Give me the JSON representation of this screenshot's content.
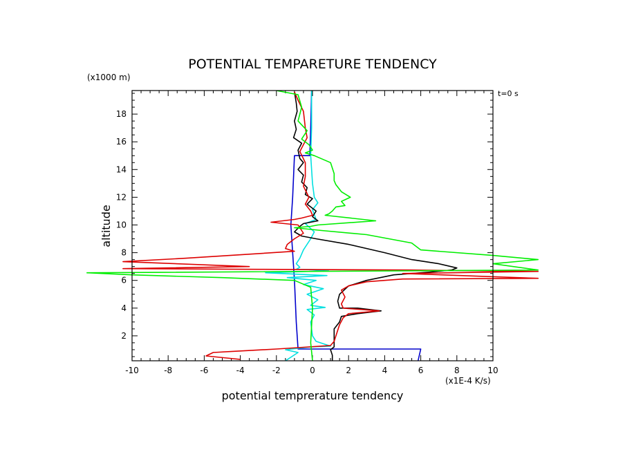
{
  "chart_data": {
    "type": "line",
    "title": "POTENTIAL TEMPARETURE TENDENCY",
    "xlabel": "potential temprerature tendency",
    "ylabel": "altitude",
    "x_unit": "(x1E-4 K/s)",
    "y_unit": "(x1000 m)",
    "time_label": "t=0 s",
    "xlim": [
      -10,
      10
    ],
    "ylim": [
      0.2,
      19.7
    ],
    "x_ticks": [
      -10,
      -8,
      -6,
      -4,
      -2,
      0,
      2,
      4,
      6,
      8,
      10
    ],
    "y_ticks": [
      2,
      4,
      6,
      8,
      10,
      12,
      14,
      16,
      18
    ],
    "series": [
      {
        "name": "blue",
        "color": "#0000cc",
        "points": [
          [
            -0.05,
            19.75
          ],
          [
            -0.1,
            17
          ],
          [
            -0.15,
            15
          ],
          [
            -1.0,
            15
          ],
          [
            -1.1,
            12
          ],
          [
            -1.2,
            10
          ],
          [
            -1.1,
            8
          ],
          [
            -1.0,
            6
          ],
          [
            -0.9,
            3
          ],
          [
            -0.8,
            1.05
          ],
          [
            6.0,
            1.05
          ],
          [
            5.85,
            0.2
          ]
        ]
      },
      {
        "name": "cyan",
        "color": "#00e0e0",
        "points": [
          [
            -0.05,
            19.7
          ],
          [
            -0.05,
            17
          ],
          [
            -0.1,
            15
          ],
          [
            0.0,
            13
          ],
          [
            0.1,
            12
          ],
          [
            0.3,
            11.6
          ],
          [
            0.0,
            11.1
          ],
          [
            0.2,
            10.4
          ],
          [
            -0.4,
            10.1
          ],
          [
            0.1,
            9.5
          ],
          [
            -0.1,
            9.0
          ],
          [
            -0.5,
            8.2
          ],
          [
            -0.7,
            7.6
          ],
          [
            -0.9,
            7.2
          ],
          [
            -0.7,
            6.95
          ],
          [
            -0.9,
            6.8
          ],
          [
            0.9,
            6.75
          ],
          [
            -0.2,
            6.65
          ],
          [
            -2.6,
            6.55
          ],
          [
            -0.9,
            6.45
          ],
          [
            0.8,
            6.35
          ],
          [
            -1.4,
            6.2
          ],
          [
            0.2,
            6.0
          ],
          [
            -0.5,
            5.7
          ],
          [
            0.6,
            5.4
          ],
          [
            -0.3,
            5.0
          ],
          [
            0.3,
            4.6
          ],
          [
            -0.1,
            4.2
          ],
          [
            0.7,
            4.05
          ],
          [
            -0.3,
            3.9
          ],
          [
            0.1,
            3.5
          ],
          [
            -0.1,
            3.0
          ],
          [
            0.0,
            2.0
          ],
          [
            0.2,
            1.6
          ],
          [
            1.0,
            1.25
          ],
          [
            -0.1,
            1.2
          ],
          [
            -1.5,
            1.0
          ],
          [
            -0.8,
            0.8
          ],
          [
            -1.5,
            0.2
          ]
        ]
      },
      {
        "name": "black",
        "color": "#000000",
        "points": [
          [
            -1.0,
            19.6
          ],
          [
            -0.9,
            18.8
          ],
          [
            -0.85,
            18.2
          ],
          [
            -1.0,
            17.5
          ],
          [
            -0.9,
            16.9
          ],
          [
            -1.05,
            16.3
          ],
          [
            -0.6,
            15.9
          ],
          [
            -0.8,
            15.4
          ],
          [
            -0.7,
            14.8
          ],
          [
            -0.5,
            14.5
          ],
          [
            -0.8,
            14.0
          ],
          [
            -0.5,
            13.6
          ],
          [
            -0.6,
            13.1
          ],
          [
            -0.3,
            12.7
          ],
          [
            -0.4,
            12.2
          ],
          [
            0.0,
            11.9
          ],
          [
            -0.3,
            11.5
          ],
          [
            0.2,
            11.0
          ],
          [
            0.0,
            10.6
          ],
          [
            0.3,
            10.3
          ],
          [
            -0.5,
            10.1
          ],
          [
            -0.7,
            9.9
          ],
          [
            -1.0,
            9.5
          ],
          [
            -0.6,
            9.2
          ],
          [
            0.2,
            9.0
          ],
          [
            2.0,
            8.6
          ],
          [
            4.0,
            8.0
          ],
          [
            5.5,
            7.5
          ],
          [
            7.0,
            7.2
          ],
          [
            8.0,
            6.9
          ],
          [
            7.7,
            6.75
          ],
          [
            6.5,
            6.6
          ],
          [
            4.5,
            6.4
          ],
          [
            3.0,
            6.0
          ],
          [
            2.0,
            5.6
          ],
          [
            1.5,
            5.0
          ],
          [
            1.4,
            4.5
          ],
          [
            1.5,
            4.0
          ],
          [
            2.5,
            4.0
          ],
          [
            3.8,
            3.8
          ],
          [
            2.5,
            3.6
          ],
          [
            1.6,
            3.4
          ],
          [
            1.5,
            3.0
          ],
          [
            1.2,
            2.5
          ],
          [
            1.2,
            1.5
          ],
          [
            1.2,
            1.2
          ],
          [
            1.0,
            1.0
          ],
          [
            1.1,
            0.6
          ],
          [
            1.1,
            0.2
          ]
        ]
      },
      {
        "name": "red",
        "color": "#dd0000",
        "points": [
          [
            -1.0,
            19.6
          ],
          [
            -0.8,
            19.0
          ],
          [
            -0.5,
            18.2
          ],
          [
            -0.4,
            17.0
          ],
          [
            -0.3,
            16.3
          ],
          [
            -0.5,
            15.8
          ],
          [
            -0.7,
            15.3
          ],
          [
            -0.4,
            14.5
          ],
          [
            -0.4,
            13.5
          ],
          [
            -0.5,
            12.8
          ],
          [
            -0.2,
            12.0
          ],
          [
            -0.4,
            11.5
          ],
          [
            -0.1,
            11.0
          ],
          [
            0.0,
            10.7
          ],
          [
            -0.6,
            10.5
          ],
          [
            -1.0,
            10.4
          ],
          [
            -2.3,
            10.2
          ],
          [
            -0.8,
            10.0
          ],
          [
            -0.5,
            9.4
          ],
          [
            -1.0,
            9.0
          ],
          [
            -1.4,
            8.6
          ],
          [
            -1.5,
            8.3
          ],
          [
            -1.0,
            8.1
          ],
          [
            -7.0,
            7.6
          ],
          [
            -10.5,
            7.35
          ],
          [
            -3.5,
            7.0
          ],
          [
            -10.5,
            6.85
          ],
          [
            -3.0,
            6.8
          ],
          [
            5.5,
            6.75
          ],
          [
            12.5,
            6.65
          ],
          [
            5.0,
            6.5
          ],
          [
            12.5,
            6.15
          ],
          [
            5.0,
            6.1
          ],
          [
            3.0,
            5.9
          ],
          [
            2.0,
            5.6
          ],
          [
            1.6,
            5.3
          ],
          [
            1.8,
            4.8
          ],
          [
            1.6,
            4.3
          ],
          [
            1.7,
            4.0
          ],
          [
            3.7,
            3.8
          ],
          [
            2.0,
            3.6
          ],
          [
            1.7,
            3.3
          ],
          [
            1.5,
            2.8
          ],
          [
            1.2,
            1.6
          ],
          [
            1.0,
            1.3
          ],
          [
            -0.8,
            1.15
          ],
          [
            -2.0,
            1.05
          ],
          [
            -5.5,
            0.8
          ],
          [
            -5.9,
            0.55
          ],
          [
            -4.0,
            0.3
          ]
        ]
      },
      {
        "name": "green",
        "color": "#00ee00",
        "points": [
          [
            -2.0,
            19.7
          ],
          [
            -0.8,
            19.4
          ],
          [
            -0.6,
            18.5
          ],
          [
            -0.8,
            17.5
          ],
          [
            -0.3,
            16.8
          ],
          [
            -0.6,
            16.2
          ],
          [
            -0.2,
            15.8
          ],
          [
            0.0,
            15.4
          ],
          [
            -0.4,
            15.2
          ],
          [
            0.1,
            15.0
          ],
          [
            1.0,
            14.5
          ],
          [
            1.2,
            13.7
          ],
          [
            1.2,
            13.2
          ],
          [
            1.3,
            12.9
          ],
          [
            1.6,
            12.4
          ],
          [
            2.1,
            12.0
          ],
          [
            1.6,
            11.7
          ],
          [
            1.8,
            11.4
          ],
          [
            1.3,
            11.3
          ],
          [
            1.1,
            11.0
          ],
          [
            0.9,
            10.8
          ],
          [
            0.7,
            10.7
          ],
          [
            3.5,
            10.3
          ],
          [
            0.3,
            10.0
          ],
          [
            -0.1,
            9.9
          ],
          [
            -1.0,
            9.8
          ],
          [
            0.5,
            9.6
          ],
          [
            3.0,
            9.3
          ],
          [
            5.5,
            8.7
          ],
          [
            6.0,
            8.2
          ],
          [
            10.0,
            7.8
          ],
          [
            12.5,
            7.5
          ],
          [
            10.0,
            7.2
          ],
          [
            12.5,
            6.75
          ],
          [
            -12.5,
            6.55
          ],
          [
            -10.0,
            6.4
          ],
          [
            -5.0,
            6.2
          ],
          [
            -1.0,
            6.0
          ],
          [
            -0.1,
            5.5
          ],
          [
            0.0,
            4.0
          ],
          [
            -0.1,
            1.5
          ],
          [
            0.0,
            0.2
          ]
        ]
      }
    ]
  }
}
